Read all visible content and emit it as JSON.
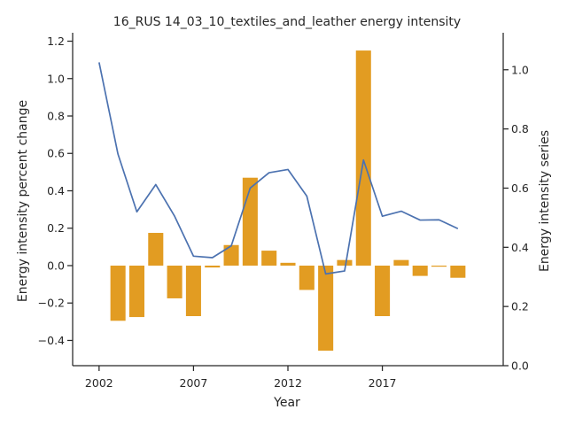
{
  "chart_data": {
    "type": "bar+line",
    "title": "16_RUS 14_03_10_textiles_and_leather energy intensity",
    "xlabel": "Year",
    "ylabel_left": "Energy intensity percent change",
    "ylabel_right": "Energy intensity series",
    "xlim": [
      2000.6,
      2023.4
    ],
    "ylim_left": [
      -0.535,
      1.245
    ],
    "ylim_right": [
      0.0,
      1.125
    ],
    "x_ticks": [
      2002,
      2007,
      2012,
      2017
    ],
    "x_tick_labels": [
      "2002",
      "2007",
      "2012",
      "2017"
    ],
    "y_left_ticks": [
      -0.4,
      -0.2,
      0.0,
      0.2,
      0.4,
      0.6,
      0.8,
      1.0,
      1.2
    ],
    "y_left_tick_labels": [
      "−0.4",
      "−0.2",
      "0.0",
      "0.2",
      "0.4",
      "0.6",
      "0.8",
      "1.0",
      "1.2"
    ],
    "y_right_ticks": [
      0.0,
      0.2,
      0.4,
      0.6,
      0.8,
      1.0
    ],
    "y_right_tick_labels": [
      "0.0",
      "0.2",
      "0.4",
      "0.6",
      "0.8",
      "1.0"
    ],
    "grid": false,
    "bar_series": {
      "axis": "left",
      "color": "#e29c22",
      "x": [
        2003,
        2004,
        2005,
        2006,
        2007,
        2008,
        2009,
        2010,
        2011,
        2012,
        2013,
        2014,
        2015,
        2016,
        2017,
        2018,
        2019,
        2020,
        2021
      ],
      "values": [
        -0.295,
        -0.275,
        0.175,
        -0.175,
        -0.27,
        -0.01,
        0.11,
        0.47,
        0.08,
        0.015,
        -0.13,
        -0.455,
        0.03,
        1.15,
        -0.27,
        0.03,
        -0.055,
        0.0,
        -0.065
      ]
    },
    "line_series": {
      "axis": "right",
      "color": "#4c72b0",
      "x": [
        2002,
        2003,
        2004,
        2005,
        2006,
        2007,
        2008,
        2009,
        2010,
        2011,
        2012,
        2013,
        2014,
        2015,
        2016,
        2017,
        2018,
        2019,
        2020,
        2021
      ],
      "values": [
        1.025,
        0.715,
        0.52,
        0.612,
        0.505,
        0.37,
        0.365,
        0.405,
        0.6,
        0.652,
        0.663,
        0.573,
        0.31,
        0.32,
        0.695,
        0.505,
        0.522,
        0.492,
        0.493,
        0.463
      ]
    }
  }
}
